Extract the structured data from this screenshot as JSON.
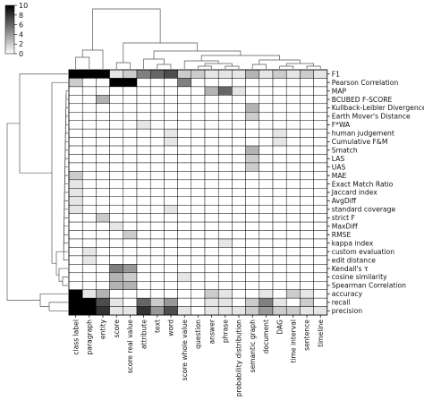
{
  "chart_data": {
    "type": "heatmap",
    "title": "",
    "xlabel": "",
    "ylabel": "",
    "colorbar": {
      "ticks": [
        10,
        8,
        6,
        4,
        2,
        0
      ],
      "min": 0,
      "max": 10,
      "colormap": "white-to-black"
    },
    "dendrograms": [
      "top",
      "left"
    ],
    "columns": [
      "class label",
      "paragraph",
      "entity",
      "score",
      "score real value",
      "attribute",
      "text",
      "word",
      "score whole value",
      "question",
      "answer",
      "phrase",
      "probability distribution",
      "semantic graph",
      "document",
      "DAG",
      "time interval",
      "sentence",
      "timeline"
    ],
    "rows": [
      "F1",
      "Pearson Correlation",
      "MAP",
      "BCUBED F-SCORE",
      "Kullback-Leibler Divergence",
      "Earth Mover's Distance",
      "F*WA",
      "human judgement",
      "Cumulative F&M",
      "Smatch",
      "LAS",
      "UAS",
      "MAE",
      "Exact Match Ratio",
      "Jaccard index",
      "AvgDiff",
      "standard coverage",
      "strict F",
      "MaxDiff",
      "RMSE",
      "kappa index",
      "custom evaluation",
      "edit distance",
      "Kendall's τ",
      "cosine similarity",
      "Spearman Correlation",
      "accuracy",
      "recall",
      "precision"
    ],
    "values": [
      [
        10,
        10,
        10,
        1,
        2,
        5,
        6,
        7,
        2,
        2,
        1,
        1,
        1,
        3,
        1,
        2,
        1,
        2,
        1
      ],
      [
        2,
        0,
        0,
        10,
        10,
        0,
        0,
        0,
        5,
        0,
        0,
        0,
        0,
        0,
        0,
        0,
        0,
        0,
        0
      ],
      [
        0,
        0,
        0,
        0,
        0,
        0,
        0,
        0,
        0,
        0,
        3,
        6,
        1,
        0,
        0,
        0,
        0,
        0,
        0
      ],
      [
        0,
        0,
        3,
        0,
        0,
        0,
        0,
        0,
        0,
        0,
        0,
        0,
        0,
        0,
        0,
        0,
        0,
        0,
        0
      ],
      [
        0,
        0,
        0,
        0,
        0,
        0,
        0,
        0,
        0,
        0,
        0,
        0,
        0,
        3,
        0,
        0,
        0,
        0,
        0
      ],
      [
        0,
        0,
        0,
        0,
        0,
        0,
        0,
        0,
        0,
        0,
        0,
        0,
        0,
        2,
        0,
        0,
        0,
        0,
        0
      ],
      [
        0,
        0,
        0,
        0,
        0,
        1,
        0,
        0,
        0,
        0,
        0,
        0,
        0,
        0,
        0,
        0,
        0,
        0,
        0
      ],
      [
        0,
        0,
        0,
        0,
        0,
        0,
        0,
        1,
        0,
        0,
        0,
        0,
        0,
        0,
        0,
        1,
        0,
        0,
        0
      ],
      [
        0,
        0,
        0,
        0,
        0,
        0,
        0,
        1,
        0,
        0,
        0,
        0,
        0,
        0,
        0,
        1,
        0,
        0,
        0
      ],
      [
        0,
        0,
        0,
        0,
        0,
        0,
        0,
        0,
        0,
        0,
        0,
        0,
        0,
        3,
        0,
        0,
        0,
        0,
        0
      ],
      [
        0,
        0,
        0,
        0,
        0,
        0,
        0,
        0,
        0,
        0,
        0,
        0,
        0,
        2,
        0,
        0,
        0,
        0,
        0
      ],
      [
        0,
        0,
        0,
        0,
        0,
        0,
        0,
        0,
        0,
        0,
        0,
        0,
        0,
        2,
        0,
        0,
        0,
        0,
        0
      ],
      [
        2,
        0,
        0,
        0,
        0,
        0,
        0,
        0,
        0,
        0,
        0,
        0,
        0,
        0,
        0,
        0,
        0,
        0,
        0
      ],
      [
        1,
        0,
        0,
        0,
        0,
        0,
        0,
        0,
        0,
        0,
        0,
        0,
        0,
        0,
        0,
        0,
        0,
        0,
        0
      ],
      [
        1,
        0,
        0,
        0,
        0,
        0,
        0,
        0,
        0,
        0,
        0,
        0,
        0,
        0,
        0,
        0,
        0,
        0,
        0
      ],
      [
        1,
        0,
        0,
        0,
        0,
        0,
        0,
        0,
        0,
        0,
        0,
        0,
        0,
        0,
        0,
        0,
        0,
        0,
        0
      ],
      [
        1,
        0,
        0,
        0,
        0,
        0,
        0,
        1,
        0,
        0,
        0,
        0,
        0,
        0,
        0,
        0,
        0,
        0,
        0
      ],
      [
        0,
        0,
        2,
        0,
        0,
        0,
        0,
        0,
        0,
        0,
        0,
        0,
        0,
        0,
        0,
        0,
        0,
        0,
        0
      ],
      [
        0,
        0,
        0,
        1,
        0,
        0,
        0,
        0,
        0,
        0,
        0,
        0,
        0,
        0,
        0,
        0,
        0,
        0,
        0
      ],
      [
        0,
        0,
        0,
        0,
        2,
        0,
        0,
        0,
        0,
        0,
        0,
        0,
        0,
        0,
        0,
        0,
        0,
        0,
        0
      ],
      [
        0,
        0,
        0,
        0,
        0,
        0,
        0,
        0,
        0,
        0,
        0,
        1,
        0,
        0,
        0,
        0,
        0,
        0,
        0
      ],
      [
        0,
        1,
        0,
        0,
        0,
        0,
        0,
        0,
        0,
        0,
        0,
        0,
        0,
        0,
        0,
        0,
        0,
        0,
        0
      ],
      [
        0,
        1,
        0,
        0,
        0,
        0,
        0,
        0,
        0,
        0,
        0,
        0,
        0,
        0,
        0,
        0,
        0,
        0,
        0
      ],
      [
        0,
        0,
        0,
        5,
        4,
        0,
        0,
        0,
        0,
        0,
        0,
        0,
        0,
        0,
        0,
        0,
        0,
        0,
        0
      ],
      [
        0,
        0,
        0,
        3,
        2,
        0,
        0,
        0,
        1,
        0,
        0,
        0,
        0,
        0,
        0,
        0,
        0,
        0,
        0
      ],
      [
        0,
        0,
        0,
        3,
        3,
        0,
        0,
        0,
        0,
        0,
        0,
        0,
        0,
        0,
        0,
        0,
        0,
        0,
        0
      ],
      [
        10,
        1,
        3,
        0,
        0,
        0,
        0,
        0,
        0,
        0,
        2,
        1,
        0,
        0,
        1,
        0,
        2,
        1,
        0
      ],
      [
        10,
        10,
        7,
        1,
        0,
        6,
        2,
        4,
        0,
        0,
        1,
        1,
        0,
        2,
        5,
        1,
        0,
        2,
        0
      ],
      [
        10,
        10,
        8,
        1,
        1,
        8,
        4,
        7,
        1,
        0,
        1,
        1,
        1,
        2,
        4,
        2,
        2,
        1,
        1
      ]
    ]
  }
}
